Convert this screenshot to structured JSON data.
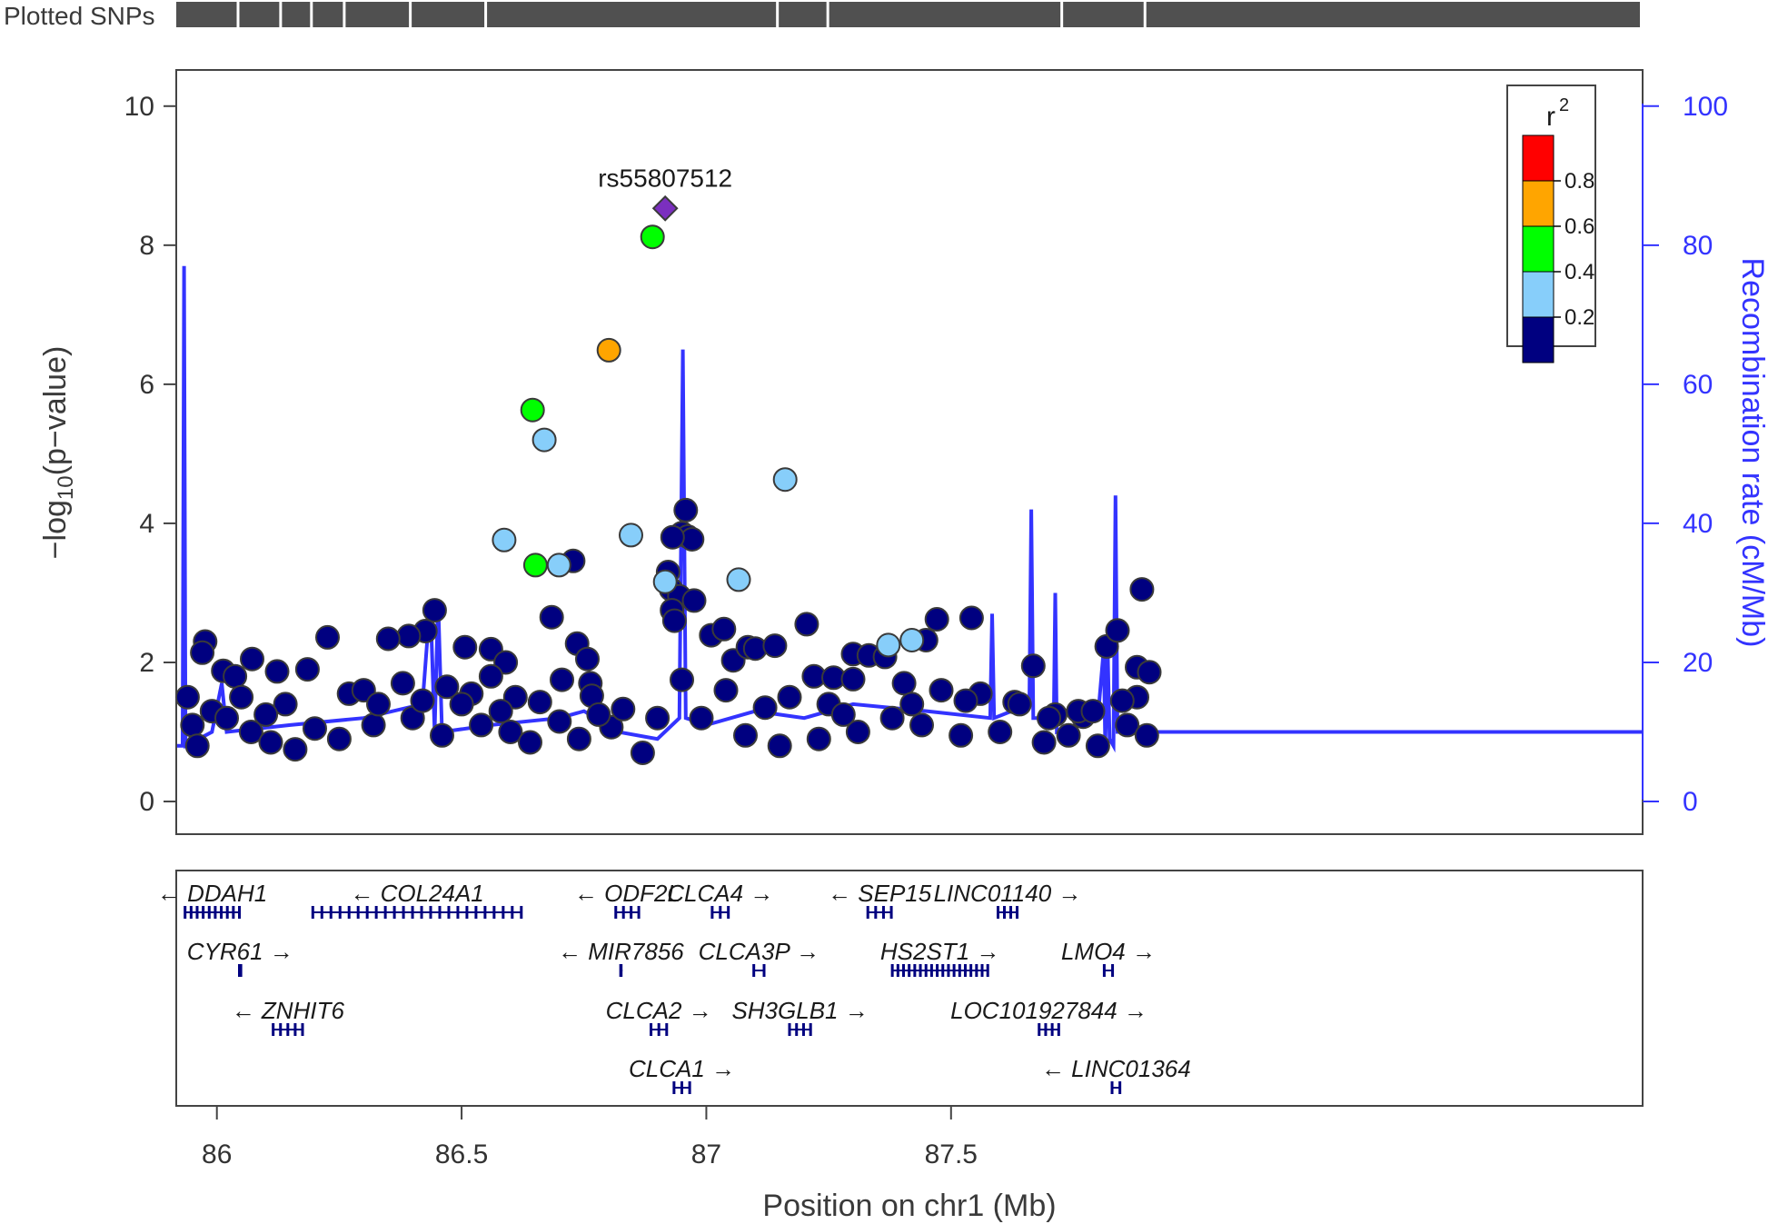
{
  "plotted_snps_label": "Plotted SNPs",
  "colors": {
    "recomb": "#3333ff",
    "snp_fill_low": "#000080",
    "snp_stroke": "#3a3a3a",
    "lead_snp": "#7b2fbf",
    "r2_0.8_1.0": "#ff0000",
    "r2_0.6_0.8": "#ffa500",
    "r2_0.4_0.6": "#00ff00",
    "r2_0.2_0.4": "#87cefa",
    "r2_0.0_0.2": "#000080"
  },
  "chart_data": {
    "type": "scatter",
    "title": "",
    "xlabel": "Position on chr1 (Mb)",
    "ylabel": "−log10(p−value)",
    "ylabel_parts": {
      "prefix": "−log",
      "sub": "10",
      "suffix": "(p−value)"
    },
    "y2label": "Recombination rate (cM/Mb)",
    "xlim": [
      85.917,
      88.913
    ],
    "ylim": [
      -0.47,
      10.52
    ],
    "y2lim": [
      -4.7,
      105.2
    ],
    "x_ticks": [
      86,
      86.5,
      87,
      87.5
    ],
    "x_tick_labels": [
      "86",
      "86.5",
      "87",
      "87.5"
    ],
    "y_ticks": [
      0,
      2,
      4,
      6,
      8,
      10
    ],
    "y_tick_labels": [
      "0",
      "2",
      "4",
      "6",
      "8",
      "10"
    ],
    "y2_ticks": [
      0,
      20,
      40,
      60,
      80,
      100
    ],
    "y2_tick_labels": [
      "0",
      "20",
      "40",
      "60",
      "80",
      "100"
    ],
    "lead_snp": {
      "name": "rs55807512",
      "x": 86.916,
      "y": 8.53
    },
    "legend": {
      "title": "r",
      "title_sup": "2",
      "placement": "top-right",
      "entries": [
        "0.8",
        "0.6",
        "0.4",
        "0.2"
      ]
    },
    "snp_series": [
      {
        "r2_bin": "0.4-0.6",
        "points": [
          [
            86.89,
            8.12
          ],
          [
            86.645,
            5.63
          ],
          [
            86.651,
            3.4
          ]
        ]
      },
      {
        "r2_bin": "0.6-0.8",
        "points": [
          [
            86.801,
            6.49
          ]
        ]
      },
      {
        "r2_bin": "0.2-0.4",
        "points": [
          [
            86.669,
            5.2
          ],
          [
            86.587,
            3.76
          ],
          [
            86.846,
            3.83
          ],
          [
            86.699,
            3.4
          ],
          [
            86.916,
            3.16
          ],
          [
            87.066,
            3.19
          ],
          [
            87.161,
            4.63
          ],
          [
            87.372,
            2.25
          ],
          [
            87.42,
            2.32
          ]
        ]
      },
      {
        "r2_bin": "0.0-0.2",
        "points": [
          [
            86.728,
            3.46
          ],
          [
            86.684,
            2.65
          ],
          [
            86.958,
            4.19
          ],
          [
            86.95,
            3.86
          ],
          [
            86.962,
            3.81
          ],
          [
            86.971,
            3.77
          ],
          [
            86.931,
            3.8
          ],
          [
            86.922,
            3.3
          ],
          [
            86.928,
            3.05
          ],
          [
            86.945,
            2.95
          ],
          [
            86.975,
            2.89
          ],
          [
            86.93,
            2.75
          ],
          [
            86.935,
            2.6
          ],
          [
            86.445,
            2.75
          ],
          [
            86.426,
            2.45
          ],
          [
            86.392,
            2.38
          ],
          [
            86.35,
            2.34
          ],
          [
            86.226,
            2.36
          ],
          [
            85.976,
            2.3
          ],
          [
            85.97,
            2.14
          ],
          [
            86.013,
            1.88
          ],
          [
            86.037,
            1.8
          ],
          [
            86.072,
            2.05
          ],
          [
            86.123,
            1.87
          ],
          [
            86.185,
            1.9
          ],
          [
            86.507,
            2.22
          ],
          [
            86.56,
            2.19
          ],
          [
            86.59,
            2.0
          ],
          [
            86.56,
            1.8
          ],
          [
            86.736,
            2.27
          ],
          [
            86.757,
            2.05
          ],
          [
            86.763,
            1.7
          ],
          [
            86.766,
            1.52
          ],
          [
            86.66,
            1.43
          ],
          [
            86.806,
            1.07
          ],
          [
            86.83,
            1.33
          ],
          [
            87.01,
            2.39
          ],
          [
            87.036,
            2.48
          ],
          [
            87.055,
            2.03
          ],
          [
            87.085,
            2.22
          ],
          [
            87.1,
            2.2
          ],
          [
            87.14,
            2.24
          ],
          [
            87.205,
            2.55
          ],
          [
            87.22,
            1.8
          ],
          [
            87.26,
            1.78
          ],
          [
            87.3,
            2.12
          ],
          [
            87.332,
            2.1
          ],
          [
            87.3,
            1.76
          ],
          [
            87.365,
            2.08
          ],
          [
            87.404,
            1.7
          ],
          [
            87.449,
            2.32
          ],
          [
            87.471,
            2.62
          ],
          [
            87.542,
            2.64
          ],
          [
            87.63,
            1.43
          ],
          [
            87.668,
            1.95
          ],
          [
            87.713,
            1.25
          ],
          [
            87.77,
            1.22
          ],
          [
            87.818,
            2.23
          ],
          [
            87.84,
            2.46
          ],
          [
            87.89,
            3.05
          ],
          [
            87.88,
            1.93
          ],
          [
            87.905,
            1.86
          ],
          [
            87.88,
            1.5
          ],
          [
            87.85,
            1.45
          ],
          [
            86.05,
            1.5
          ],
          [
            86.14,
            1.4
          ],
          [
            86.27,
            1.55
          ],
          [
            86.3,
            1.6
          ],
          [
            86.38,
            1.7
          ],
          [
            86.47,
            1.65
          ],
          [
            86.52,
            1.55
          ],
          [
            86.61,
            1.5
          ],
          [
            86.705,
            1.75
          ],
          [
            86.95,
            1.75
          ],
          [
            87.04,
            1.6
          ],
          [
            87.17,
            1.5
          ],
          [
            87.25,
            1.4
          ],
          [
            87.48,
            1.6
          ],
          [
            87.56,
            1.55
          ],
          [
            87.64,
            1.4
          ],
          [
            87.76,
            1.3
          ],
          [
            86.07,
            1.0
          ],
          [
            86.11,
            0.85
          ],
          [
            86.16,
            0.75
          ],
          [
            86.2,
            1.05
          ],
          [
            86.25,
            0.9
          ],
          [
            86.32,
            1.1
          ],
          [
            86.4,
            1.2
          ],
          [
            86.46,
            0.95
          ],
          [
            86.54,
            1.1
          ],
          [
            86.6,
            1.0
          ],
          [
            86.64,
            0.85
          ],
          [
            86.7,
            1.15
          ],
          [
            86.74,
            0.9
          ],
          [
            86.87,
            0.7
          ],
          [
            86.99,
            1.2
          ],
          [
            87.08,
            0.95
          ],
          [
            87.15,
            0.8
          ],
          [
            87.23,
            0.9
          ],
          [
            87.31,
            1.0
          ],
          [
            87.38,
            1.2
          ],
          [
            87.44,
            1.1
          ],
          [
            87.52,
            0.95
          ],
          [
            87.6,
            1.0
          ],
          [
            87.69,
            0.85
          ],
          [
            87.74,
            0.95
          ],
          [
            87.8,
            0.8
          ],
          [
            87.86,
            1.1
          ],
          [
            87.9,
            0.95
          ],
          [
            85.94,
            1.5
          ],
          [
            85.95,
            1.1
          ],
          [
            85.96,
            0.8
          ],
          [
            85.99,
            1.3
          ],
          [
            86.02,
            1.2
          ],
          [
            86.1,
            1.25
          ],
          [
            86.33,
            1.4
          ],
          [
            86.42,
            1.45
          ],
          [
            86.5,
            1.4
          ],
          [
            86.58,
            1.3
          ],
          [
            86.78,
            1.25
          ],
          [
            86.9,
            1.2
          ],
          [
            87.12,
            1.35
          ],
          [
            87.28,
            1.25
          ],
          [
            87.42,
            1.4
          ],
          [
            87.53,
            1.45
          ],
          [
            87.7,
            1.2
          ],
          [
            87.79,
            1.3
          ]
        ]
      }
    ],
    "recombination_rate": [
      [
        85.917,
        8
      ],
      [
        85.93,
        8
      ],
      [
        85.933,
        77
      ],
      [
        85.936,
        8
      ],
      [
        85.99,
        10
      ],
      [
        86.01,
        17
      ],
      [
        86.02,
        10
      ],
      [
        86.15,
        11
      ],
      [
        86.3,
        12
      ],
      [
        86.42,
        14
      ],
      [
        86.436,
        29
      ],
      [
        86.445,
        10
      ],
      [
        86.452,
        29
      ],
      [
        86.46,
        10
      ],
      [
        86.56,
        11
      ],
      [
        86.7,
        12
      ],
      [
        86.75,
        13
      ],
      [
        86.82,
        10
      ],
      [
        86.9,
        9
      ],
      [
        86.945,
        12
      ],
      [
        86.952,
        65
      ],
      [
        86.958,
        12
      ],
      [
        87.0,
        11
      ],
      [
        87.1,
        13
      ],
      [
        87.2,
        12
      ],
      [
        87.3,
        14
      ],
      [
        87.45,
        13
      ],
      [
        87.58,
        12
      ],
      [
        87.584,
        27
      ],
      [
        87.588,
        12
      ],
      [
        87.66,
        14
      ],
      [
        87.664,
        42
      ],
      [
        87.668,
        12
      ],
      [
        87.71,
        12
      ],
      [
        87.713,
        30
      ],
      [
        87.716,
        10
      ],
      [
        87.8,
        12
      ],
      [
        87.812,
        22
      ],
      [
        87.815,
        8
      ],
      [
        87.82,
        22
      ],
      [
        87.824,
        9
      ],
      [
        87.832,
        8
      ],
      [
        87.836,
        44
      ],
      [
        87.84,
        10
      ],
      [
        88.913,
        10
      ]
    ]
  },
  "plotted_snps_bar": {
    "segment_bounds_mb": [
      85.917,
      86.046,
      86.133,
      86.196,
      86.263,
      86.398,
      86.552,
      87.148,
      87.251,
      87.729,
      87.899,
      88.913
    ]
  },
  "genes": [
    {
      "name": "DDAH1",
      "strand": "-",
      "row": 0,
      "start": 85.935,
      "end": 86.046
    },
    {
      "name": "COL24A1",
      "strand": "-",
      "row": 0,
      "start": 86.196,
      "end": 86.622
    },
    {
      "name": "ODF2L",
      "strand": "-",
      "row": 0,
      "start": 86.815,
      "end": 86.862
    },
    {
      "name": "CLCA4",
      "strand": "+",
      "row": 0,
      "start": 87.012,
      "end": 87.045
    },
    {
      "name": "SEP15",
      "strand": "-",
      "row": 0,
      "start": 87.33,
      "end": 87.378
    },
    {
      "name": "LINC01140",
      "strand": "+",
      "row": 0,
      "start": 87.596,
      "end": 87.635
    },
    {
      "name": "CYR61",
      "strand": "+",
      "row": 1,
      "start": 86.046,
      "end": 86.049
    },
    {
      "name": "MIR7856",
      "strand": "-",
      "row": 1,
      "start": 86.825,
      "end": 86.826
    },
    {
      "name": "CLCA3P",
      "strand": "+",
      "row": 1,
      "start": 87.097,
      "end": 87.118
    },
    {
      "name": "HS2ST1",
      "strand": "+",
      "row": 1,
      "start": 87.38,
      "end": 87.575
    },
    {
      "name": "LMO4",
      "strand": "+",
      "row": 1,
      "start": 87.813,
      "end": 87.83
    },
    {
      "name": "ZNHIT6",
      "strand": "-",
      "row": 2,
      "start": 86.115,
      "end": 86.175
    },
    {
      "name": "CLCA2",
      "strand": "+",
      "row": 2,
      "start": 86.887,
      "end": 86.919
    },
    {
      "name": "SH3GLB1",
      "strand": "+",
      "row": 2,
      "start": 87.17,
      "end": 87.213
    },
    {
      "name": "LOC101927844",
      "strand": "+",
      "row": 2,
      "start": 87.68,
      "end": 87.72
    },
    {
      "name": "CLCA1",
      "strand": "+",
      "row": 3,
      "start": 86.934,
      "end": 86.966
    },
    {
      "name": "LINC01364",
      "strand": "-",
      "row": 3,
      "start": 87.829,
      "end": 87.845
    }
  ]
}
